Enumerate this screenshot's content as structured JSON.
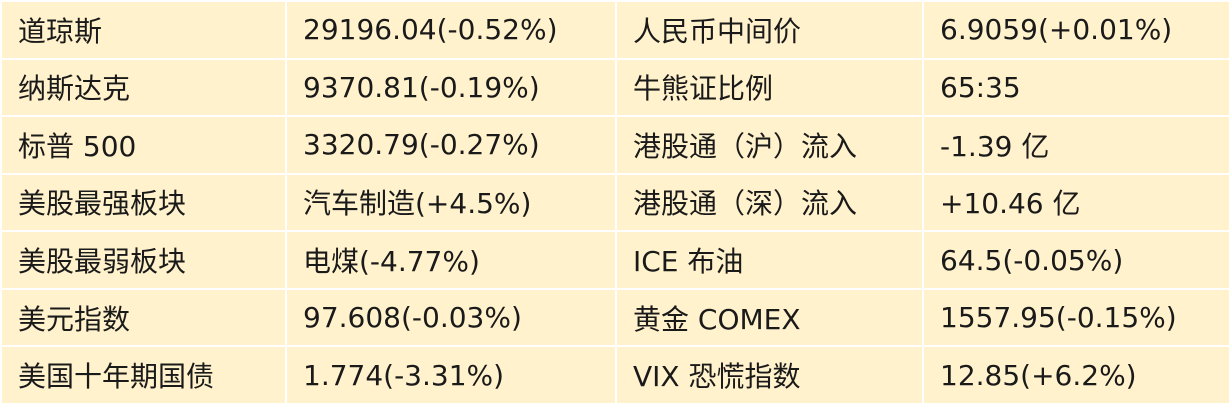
{
  "table": {
    "rows": [
      [
        "道琼斯",
        "29196.04(-0.52%)",
        "人民币中间价",
        "6.9059(+0.01%)"
      ],
      [
        "纳斯达克",
        "9370.81(-0.19%)",
        "牛熊证比例",
        "65:35"
      ],
      [
        "标普 500",
        "3320.79(-0.27%)",
        "港股通（沪）流入",
        "-1.39 亿"
      ],
      [
        "美股最强板块",
        "汽车制造(+4.5%)",
        "港股通（深）流入",
        "+10.46 亿"
      ],
      [
        "美股最弱板块",
        "电煤(-4.77%)",
        "ICE 布油",
        "64.5(-0.05%)"
      ],
      [
        "美元指数",
        "97.608(-0.03%)",
        "黄金 COMEX",
        "1557.95(-0.15%)"
      ],
      [
        "美国十年期国债",
        "1.774(-3.31%)",
        "VIX 恐慌指数",
        "12.85(+6.2%)"
      ]
    ]
  }
}
